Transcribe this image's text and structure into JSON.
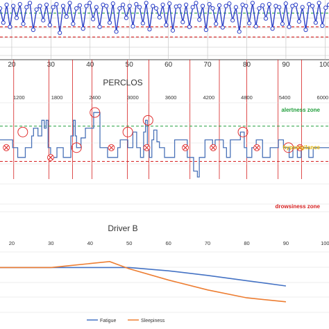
{
  "colors": {
    "signal_blue": "#2b3fc7",
    "perclos_blue": "#4a72b8",
    "alert_green": "#1f9d3a",
    "hypo_yellow": "#e0b000",
    "drowsy_red": "#d62020",
    "fatigue_blue": "#4472c4",
    "sleepiness_orange": "#ed7d31",
    "grid": "#bfbfbf",
    "marker_red": "#e03030"
  },
  "chart_data": [
    {
      "type": "line",
      "x_ticks": [
        "20",
        "30",
        "40",
        "50",
        "60",
        "70",
        "80",
        "90",
        "100"
      ],
      "xlim": [
        17,
        101
      ],
      "ylim": [
        0,
        1
      ],
      "grid": true,
      "vertical_markers_x": [
        20.5,
        29.5,
        35.5,
        40.5,
        49.5,
        55,
        65.5,
        73,
        80,
        88,
        94
      ],
      "series": [
        {
          "values": [
            0.86,
            0.62,
            0.92,
            0.55,
            0.9,
            0.7,
            0.93,
            0.6,
            0.88,
            0.95,
            0.5,
            0.84,
            0.9,
            0.66,
            0.92,
            0.58,
            0.88,
            0.93,
            0.45,
            0.9,
            0.72,
            0.95,
            0.6,
            0.86,
            0.91,
            0.52,
            0.9,
            0.95,
            0.68,
            0.88,
            0.55,
            0.92,
            0.9,
            0.62,
            0.94,
            0.47,
            0.86,
            0.92,
            0.7,
            0.9,
            0.56,
            0.93,
            0.88,
            0.61,
            0.95,
            0.51,
            0.9,
            0.86,
            0.71,
            0.92,
            0.58,
            0.94,
            0.49,
            0.89,
            0.9,
            0.63,
            0.92,
            0.55,
            0.88,
            0.95,
            0.67,
            0.9,
            0.5,
            0.93,
            0.86,
            0.6,
            0.91,
            0.54,
            0.9,
            0.94,
            0.66,
            0.88,
            0.47,
            0.92,
            0.9,
            0.61,
            0.95,
            0.56,
            0.86,
            0.91,
            0.69,
            0.93,
            0.52,
            0.9,
            0.88,
            0.6,
            0.94,
            0.55,
            0.9,
            0.92,
            0.64,
            0.88,
            0.5,
            0.93,
            0.9,
            0.62,
            0.95,
            0.57,
            0.87,
            0.92
          ]
        }
      ],
      "reference_lines": [
        {
          "y": 0.78,
          "color": "#1f9d3a"
        },
        {
          "y": 0.55,
          "color": "#d62020"
        },
        {
          "y": 0.38,
          "color": "#d62020"
        }
      ]
    },
    {
      "type": "line",
      "title": "PERCLOS",
      "x_ticks": [
        "1200",
        "1800",
        "2400",
        "3000",
        "3600",
        "4200",
        "4800",
        "5400",
        "6000"
      ],
      "xlim": [
        900,
        6100
      ],
      "grid": true,
      "annotations": [
        "alertness zone",
        "hypovigilance",
        "drowsiness zone"
      ],
      "thresholds": {
        "alertness": 0.3,
        "drowsiness": 0.12
      },
      "ylim": [
        -0.12,
        0.42
      ],
      "series": [
        {
          "points": [
            [
              900,
              0.23
            ],
            [
              1100,
              0.23
            ],
            [
              1100,
              0.19
            ],
            [
              1180,
              0.19
            ],
            [
              1180,
              0.14
            ],
            [
              1300,
              0.14
            ],
            [
              1300,
              0.19
            ],
            [
              1400,
              0.19
            ],
            [
              1400,
              0.25
            ],
            [
              1430,
              0.25
            ],
            [
              1430,
              0.29
            ],
            [
              1500,
              0.29
            ],
            [
              1500,
              0.25
            ],
            [
              1560,
              0.25
            ],
            [
              1560,
              0.33
            ],
            [
              1600,
              0.33
            ],
            [
              1600,
              0.29
            ],
            [
              1630,
              0.29
            ],
            [
              1630,
              0.33
            ],
            [
              1660,
              0.33
            ],
            [
              1660,
              0.19
            ],
            [
              1700,
              0.19
            ],
            [
              1700,
              0.14
            ],
            [
              1800,
              0.14
            ],
            [
              1800,
              0.19
            ],
            [
              1900,
              0.19
            ],
            [
              1900,
              0.14
            ],
            [
              2020,
              0.14
            ],
            [
              2020,
              0.25
            ],
            [
              2060,
              0.25
            ],
            [
              2060,
              0.33
            ],
            [
              2090,
              0.33
            ],
            [
              2090,
              0.25
            ],
            [
              2110,
              0.25
            ],
            [
              2110,
              0.19
            ],
            [
              2180,
              0.19
            ],
            [
              2180,
              0.24
            ],
            [
              2250,
              0.24
            ],
            [
              2250,
              0.29
            ],
            [
              2380,
              0.29
            ],
            [
              2380,
              0.37
            ],
            [
              2480,
              0.37
            ],
            [
              2480,
              0.19
            ],
            [
              2600,
              0.19
            ],
            [
              2600,
              0.14
            ],
            [
              2760,
              0.14
            ],
            [
              2760,
              0.19
            ],
            [
              2800,
              0.19
            ],
            [
              2800,
              0.23
            ],
            [
              2920,
              0.23
            ],
            [
              2920,
              0.19
            ],
            [
              3000,
              0.19
            ],
            [
              3000,
              0.27
            ],
            [
              3060,
              0.27
            ],
            [
              3060,
              0.19
            ],
            [
              3120,
              0.19
            ],
            [
              3120,
              0.14
            ],
            [
              3170,
              0.14
            ],
            [
              3170,
              0.27
            ],
            [
              3200,
              0.27
            ],
            [
              3200,
              0.33
            ],
            [
              3230,
              0.33
            ],
            [
              3230,
              0.19
            ],
            [
              3260,
              0.19
            ],
            [
              3260,
              0.14
            ],
            [
              3300,
              0.14
            ],
            [
              3300,
              0.23
            ],
            [
              3330,
              0.23
            ],
            [
              3330,
              0.28
            ],
            [
              3380,
              0.28
            ],
            [
              3380,
              0.22
            ],
            [
              3420,
              0.22
            ],
            [
              3420,
              0.19
            ],
            [
              3500,
              0.19
            ],
            [
              3500,
              0.14
            ],
            [
              3660,
              0.14
            ],
            [
              3660,
              0.23
            ],
            [
              3860,
              0.23
            ],
            [
              3860,
              0.14
            ],
            [
              3960,
              0.14
            ],
            [
              3960,
              0.07
            ],
            [
              4020,
              0.07
            ],
            [
              4020,
              0.04
            ],
            [
              4050,
              0.04
            ],
            [
              4050,
              0.14
            ],
            [
              4140,
              0.14
            ],
            [
              4140,
              0.23
            ],
            [
              4260,
              0.23
            ],
            [
              4260,
              0.19
            ],
            [
              4300,
              0.19
            ],
            [
              4300,
              0.23
            ],
            [
              4430,
              0.23
            ],
            [
              4430,
              0.19
            ],
            [
              4480,
              0.19
            ],
            [
              4480,
              0.14
            ],
            [
              4540,
              0.14
            ],
            [
              4540,
              0.23
            ],
            [
              4700,
              0.23
            ],
            [
              4700,
              0.27
            ],
            [
              4760,
              0.27
            ],
            [
              4760,
              0.19
            ],
            [
              4800,
              0.19
            ],
            [
              4800,
              0.14
            ],
            [
              4880,
              0.14
            ],
            [
              4880,
              0.19
            ],
            [
              4950,
              0.19
            ],
            [
              4950,
              0.23
            ],
            [
              5050,
              0.23
            ],
            [
              5050,
              0.14
            ],
            [
              5170,
              0.14
            ],
            [
              5170,
              0.19
            ],
            [
              5300,
              0.19
            ],
            [
              5300,
              0.23
            ],
            [
              5380,
              0.23
            ],
            [
              5380,
              0.19
            ],
            [
              5470,
              0.19
            ],
            [
              5470,
              0.14
            ],
            [
              5530,
              0.14
            ],
            [
              5530,
              0.19
            ],
            [
              5600,
              0.19
            ],
            [
              5600,
              0.14
            ],
            [
              5660,
              0.14
            ],
            [
              5660,
              0.19
            ],
            [
              5780,
              0.19
            ],
            [
              5780,
              0.14
            ],
            [
              5850,
              0.14
            ],
            [
              5850,
              0.19
            ],
            [
              6100,
              0.19
            ]
          ]
        }
      ],
      "circle_markers": [
        [
          1260,
          0.27
        ],
        [
          2110,
          0.19
        ],
        [
          2400,
          0.37
        ],
        [
          2920,
          0.27
        ],
        [
          3240,
          0.33
        ],
        [
          4740,
          0.27
        ],
        [
          5460,
          0.19
        ]
      ],
      "x_markers": [
        [
          1000,
          0.19
        ],
        [
          1700,
          0.14
        ],
        [
          2660,
          0.19
        ],
        [
          3220,
          0.19
        ],
        [
          3830,
          0.19
        ],
        [
          4270,
          0.19
        ],
        [
          4960,
          0.19
        ],
        [
          5640,
          0.19
        ]
      ]
    },
    {
      "type": "line",
      "title": "Driver B",
      "x_ticks": [
        "20",
        "30",
        "40",
        "50",
        "60",
        "70",
        "80",
        "90",
        "100"
      ],
      "xlim": [
        17,
        101
      ],
      "ylim": [
        0,
        1
      ],
      "grid": true,
      "legend_placement": "bottom",
      "series": [
        {
          "name": "Fatigue",
          "x": [
            17,
            30,
            50,
            60,
            70,
            80,
            90
          ],
          "values": [
            0.68,
            0.68,
            0.68,
            0.63,
            0.56,
            0.48,
            0.4
          ]
        },
        {
          "name": "Sleepiness",
          "x": [
            17,
            30,
            45,
            50,
            60,
            70,
            80,
            90
          ],
          "values": [
            0.68,
            0.68,
            0.77,
            0.66,
            0.49,
            0.34,
            0.22,
            0.16
          ]
        }
      ]
    }
  ]
}
